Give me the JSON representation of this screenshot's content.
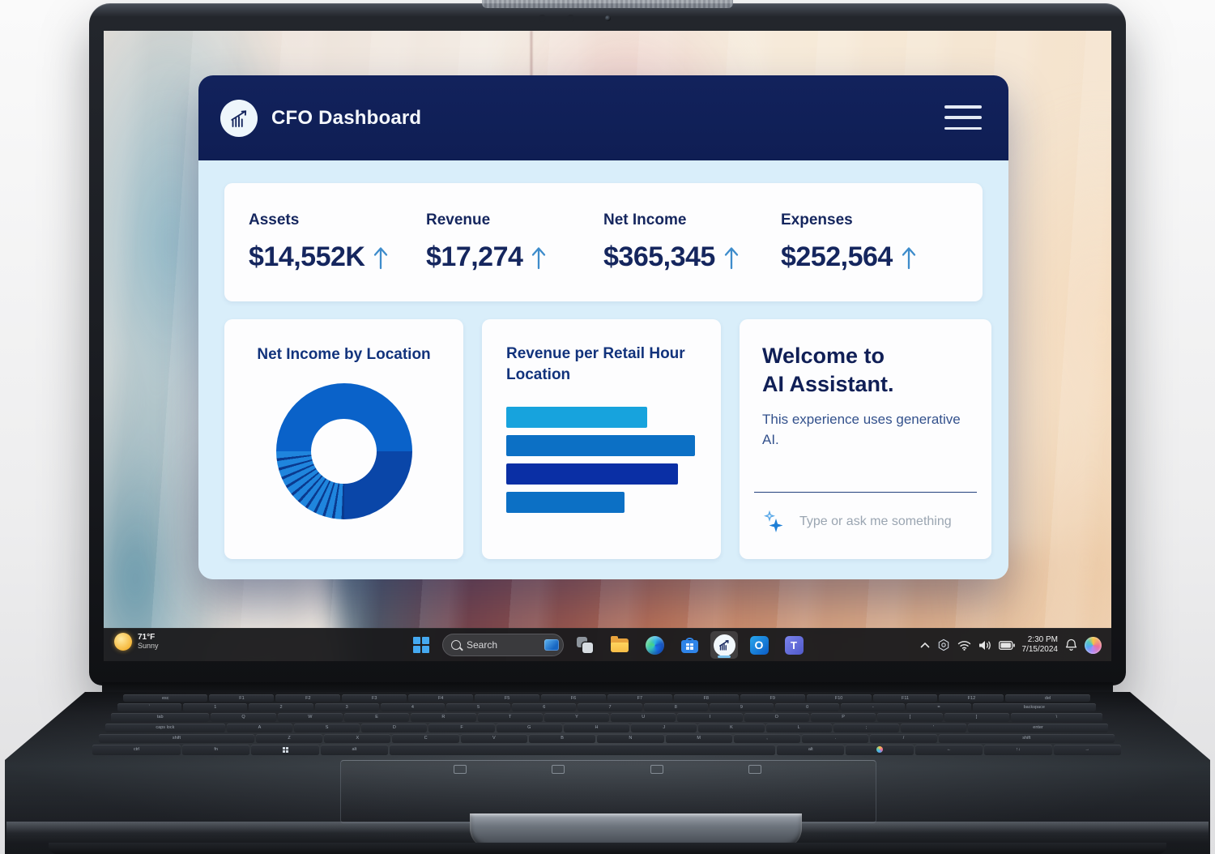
{
  "window": {
    "header": {
      "title": "CFO Dashboard",
      "logo": "line-chart-arrow-icon"
    },
    "kpis": [
      {
        "label": "Assets",
        "value": "$14,552K",
        "trend": "up"
      },
      {
        "label": "Revenue",
        "value": "$17,274",
        "trend": "up"
      },
      {
        "label": "Net Income",
        "value": "$365,345",
        "trend": "up"
      },
      {
        "label": "Expenses",
        "value": "$252,564",
        "trend": "up"
      }
    ],
    "assistant": {
      "heading_line1": "Welcome to",
      "heading_line2": "AI Assistant.",
      "description": "This experience uses generative AI.",
      "input_placeholder": "Type or ask me something"
    }
  },
  "chart_data": [
    {
      "type": "pie",
      "variant": "donut",
      "title": "Net Income by Location",
      "legend": false,
      "data_labels_shown": false,
      "hole_ratio": 0.48,
      "summary_segments": [
        {
          "share_pct": 50,
          "color": "#0a62c9",
          "note": "single large segment spanning the entire top half"
        },
        {
          "share_pct": 25,
          "color": "#0a46a8",
          "note": "lower-right quarter"
        },
        {
          "share_pct": 25,
          "color": "#1f85dd",
          "note": "lower-left quarter split into ~11 thin slices with dark separators"
        }
      ],
      "render_segments": [
        {
          "value": 25,
          "color": "#0a62c9"
        },
        {
          "value": 25,
          "color": "#0a46a8"
        },
        {
          "value": 25,
          "pattern": {
            "gap": 0.65,
            "slice": 1.62,
            "gap_color": "#0a3a8f",
            "slice_color": "#1f85dd"
          }
        },
        {
          "value": 25,
          "color": "#0a62c9"
        }
      ]
    },
    {
      "type": "bar",
      "orientation": "horizontal",
      "title": "Revenue per Retail Hour Location",
      "axis_labels_shown": false,
      "values_pct_of_width": [
        74,
        99,
        90,
        62
      ],
      "colors": [
        "#17a3dd",
        "#0c70c5",
        "#0a2fa5",
        "#0c70c5"
      ]
    }
  ],
  "taskbar": {
    "weather": {
      "temperature": "71°F",
      "condition": "Sunny"
    },
    "search": {
      "placeholder": "Search"
    },
    "apps": [
      "start",
      "search",
      "task-view",
      "file-explorer",
      "edge",
      "microsoft-store",
      "cfo-dashboard (active)",
      "outlook",
      "teams"
    ],
    "tray": {
      "icons": [
        "chevron-up",
        "optimizer-hexagon",
        "wifi",
        "volume",
        "battery",
        "bell",
        "copilot"
      ],
      "time": "2:30 PM",
      "date": "7/15/2024"
    }
  },
  "colors": {
    "header_navy": "#101f56",
    "window_body_blue": "#d9eefa",
    "ink_navy": "#15265e",
    "card_title_blue": "#12337c",
    "trend_arrow_blue": "#3e8ccb",
    "sparkle_blue": "#1e7fd6"
  },
  "keyboard": {
    "rows": [
      [
        [
          "esc",
          1.3
        ],
        [
          "F1",
          1
        ],
        [
          "F2",
          1
        ],
        [
          "F3",
          1
        ],
        [
          "F4",
          1
        ],
        [
          "F5",
          1
        ],
        [
          "F6",
          1
        ],
        [
          "F7",
          1
        ],
        [
          "F8",
          1
        ],
        [
          "F9",
          1
        ],
        [
          "F10",
          1
        ],
        [
          "F11",
          1
        ],
        [
          "F12",
          1
        ],
        [
          "del",
          1.3
        ]
      ],
      [
        [
          "`",
          1
        ],
        [
          "1",
          1
        ],
        [
          "2",
          1
        ],
        [
          "3",
          1
        ],
        [
          "4",
          1
        ],
        [
          "5",
          1
        ],
        [
          "6",
          1
        ],
        [
          "7",
          1
        ],
        [
          "8",
          1
        ],
        [
          "9",
          1
        ],
        [
          "0",
          1
        ],
        [
          "-",
          1
        ],
        [
          "=",
          1
        ],
        [
          "backspace",
          1.9
        ]
      ],
      [
        [
          "tab",
          1.5
        ],
        [
          "Q",
          1
        ],
        [
          "W",
          1
        ],
        [
          "E",
          1
        ],
        [
          "R",
          1
        ],
        [
          "T",
          1
        ],
        [
          "Y",
          1
        ],
        [
          "U",
          1
        ],
        [
          "I",
          1
        ],
        [
          "O",
          1
        ],
        [
          "P",
          1
        ],
        [
          "[",
          1
        ],
        [
          "]",
          1
        ],
        [
          "\\",
          1.4
        ]
      ],
      [
        [
          "caps lock",
          1.8
        ],
        [
          "A",
          1
        ],
        [
          "S",
          1
        ],
        [
          "D",
          1
        ],
        [
          "F",
          1
        ],
        [
          "G",
          1
        ],
        [
          "H",
          1
        ],
        [
          "J",
          1
        ],
        [
          "K",
          1
        ],
        [
          "L",
          1
        ],
        [
          ";",
          1
        ],
        [
          "'",
          1
        ],
        [
          "enter",
          2.1
        ]
      ],
      [
        [
          "shift",
          2.3
        ],
        [
          "Z",
          1
        ],
        [
          "X",
          1
        ],
        [
          "C",
          1
        ],
        [
          "V",
          1
        ],
        [
          "B",
          1
        ],
        [
          "N",
          1
        ],
        [
          "M",
          1
        ],
        [
          ",",
          1
        ],
        [
          ".",
          1
        ],
        [
          "/",
          1
        ],
        [
          "shift",
          2.6
        ]
      ],
      [
        [
          "ctrl",
          1.3
        ],
        [
          "fn",
          1
        ],
        [
          "win",
          1
        ],
        [
          "alt",
          1
        ],
        [
          "",
          5.6
        ],
        [
          "alt",
          1
        ],
        [
          "copilot",
          1
        ],
        [
          "←",
          1
        ],
        [
          "↑↓",
          1
        ],
        [
          "→",
          1
        ]
      ]
    ]
  }
}
